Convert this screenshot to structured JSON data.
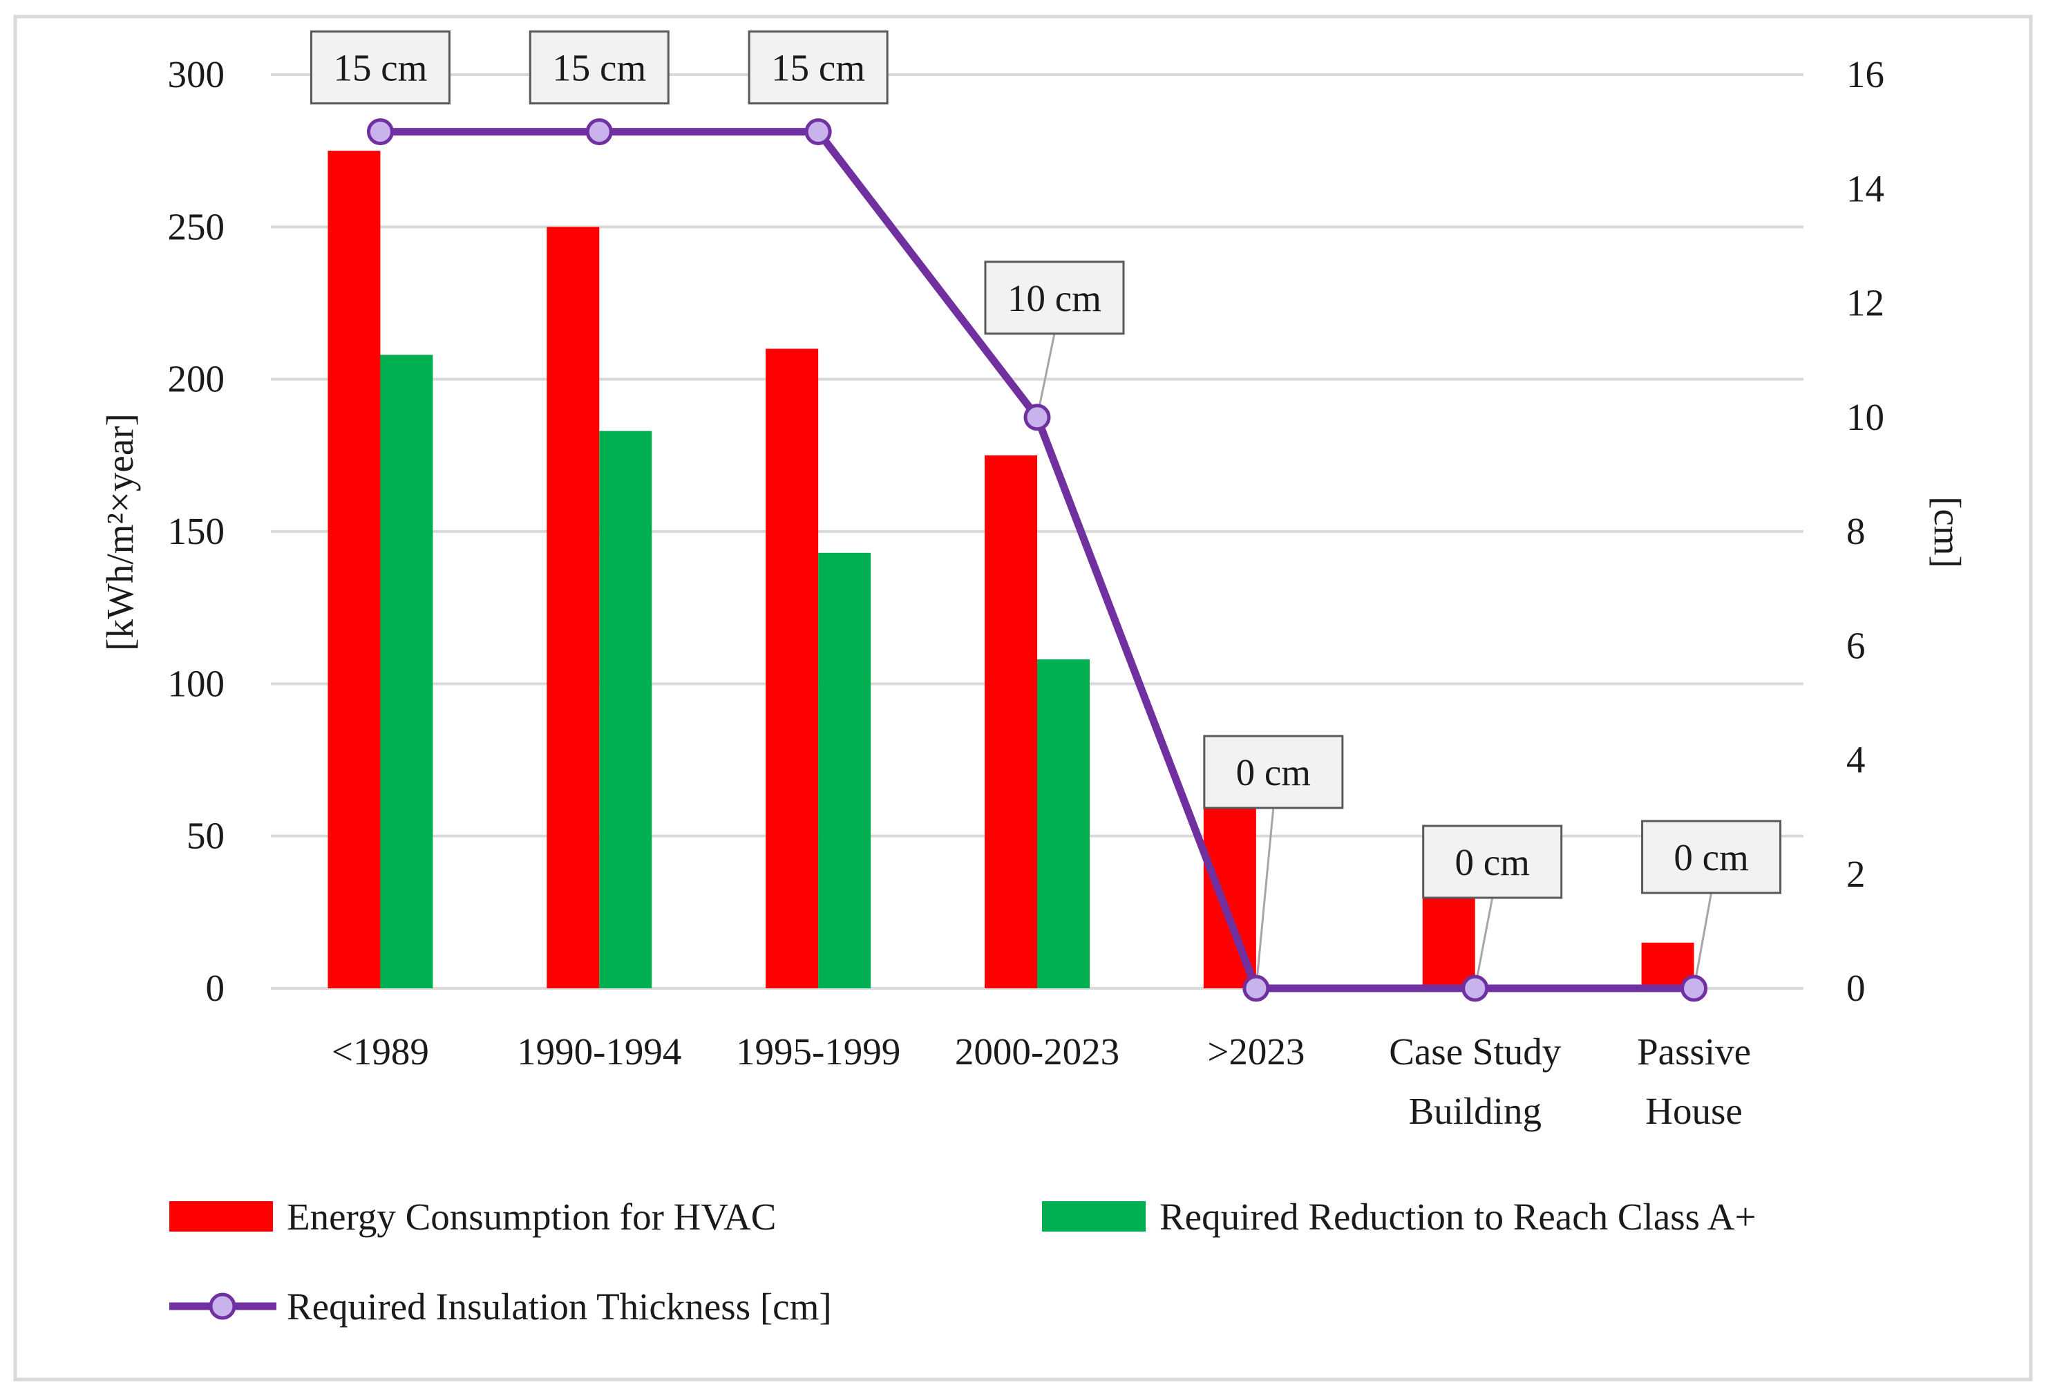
{
  "chart_data": {
    "type": "bar",
    "categories": [
      [
        "<1989"
      ],
      [
        "1990-1994"
      ],
      [
        "1995-1999"
      ],
      [
        "2000-2023"
      ],
      [
        ">2023"
      ],
      [
        "Case Study",
        "Building"
      ],
      [
        "Passive",
        "House"
      ]
    ],
    "series": [
      {
        "name": "Energy Consumption for HVAC",
        "kind": "bar",
        "axis": "left",
        "color": "#ff0000",
        "values": [
          275,
          250,
          210,
          175,
          60,
          31,
          15
        ]
      },
      {
        "name": "Required Reduction to Reach Class A+",
        "kind": "bar",
        "axis": "left",
        "color": "#00b050",
        "values": [
          208,
          183,
          143,
          108,
          0,
          0,
          0
        ]
      },
      {
        "name": "Required Insulation Thickness [cm]",
        "kind": "line",
        "axis": "right",
        "color": "#7030a0",
        "marker_fill": "#c9b3ec",
        "values": [
          15,
          15,
          15,
          10,
          0,
          0,
          0
        ],
        "data_labels": [
          "15 cm",
          "15 cm",
          "15 cm",
          "10 cm",
          "0 cm",
          "0 cm",
          "0 cm"
        ]
      }
    ],
    "y_left": {
      "label": "[kWh/m²×year]",
      "range": [
        0,
        300
      ],
      "ticks": [
        "0",
        "50",
        "100",
        "150",
        "200",
        "250",
        "300"
      ]
    },
    "y_right": {
      "label": "[cm]",
      "range": [
        0,
        16
      ],
      "ticks": [
        "0",
        "2",
        "4",
        "6",
        "8",
        "10",
        "12",
        "14",
        "16"
      ]
    },
    "grid": true,
    "gridline_color": "#d9d9d9",
    "legend_position": "bottom",
    "title": "",
    "xlabel": ""
  }
}
